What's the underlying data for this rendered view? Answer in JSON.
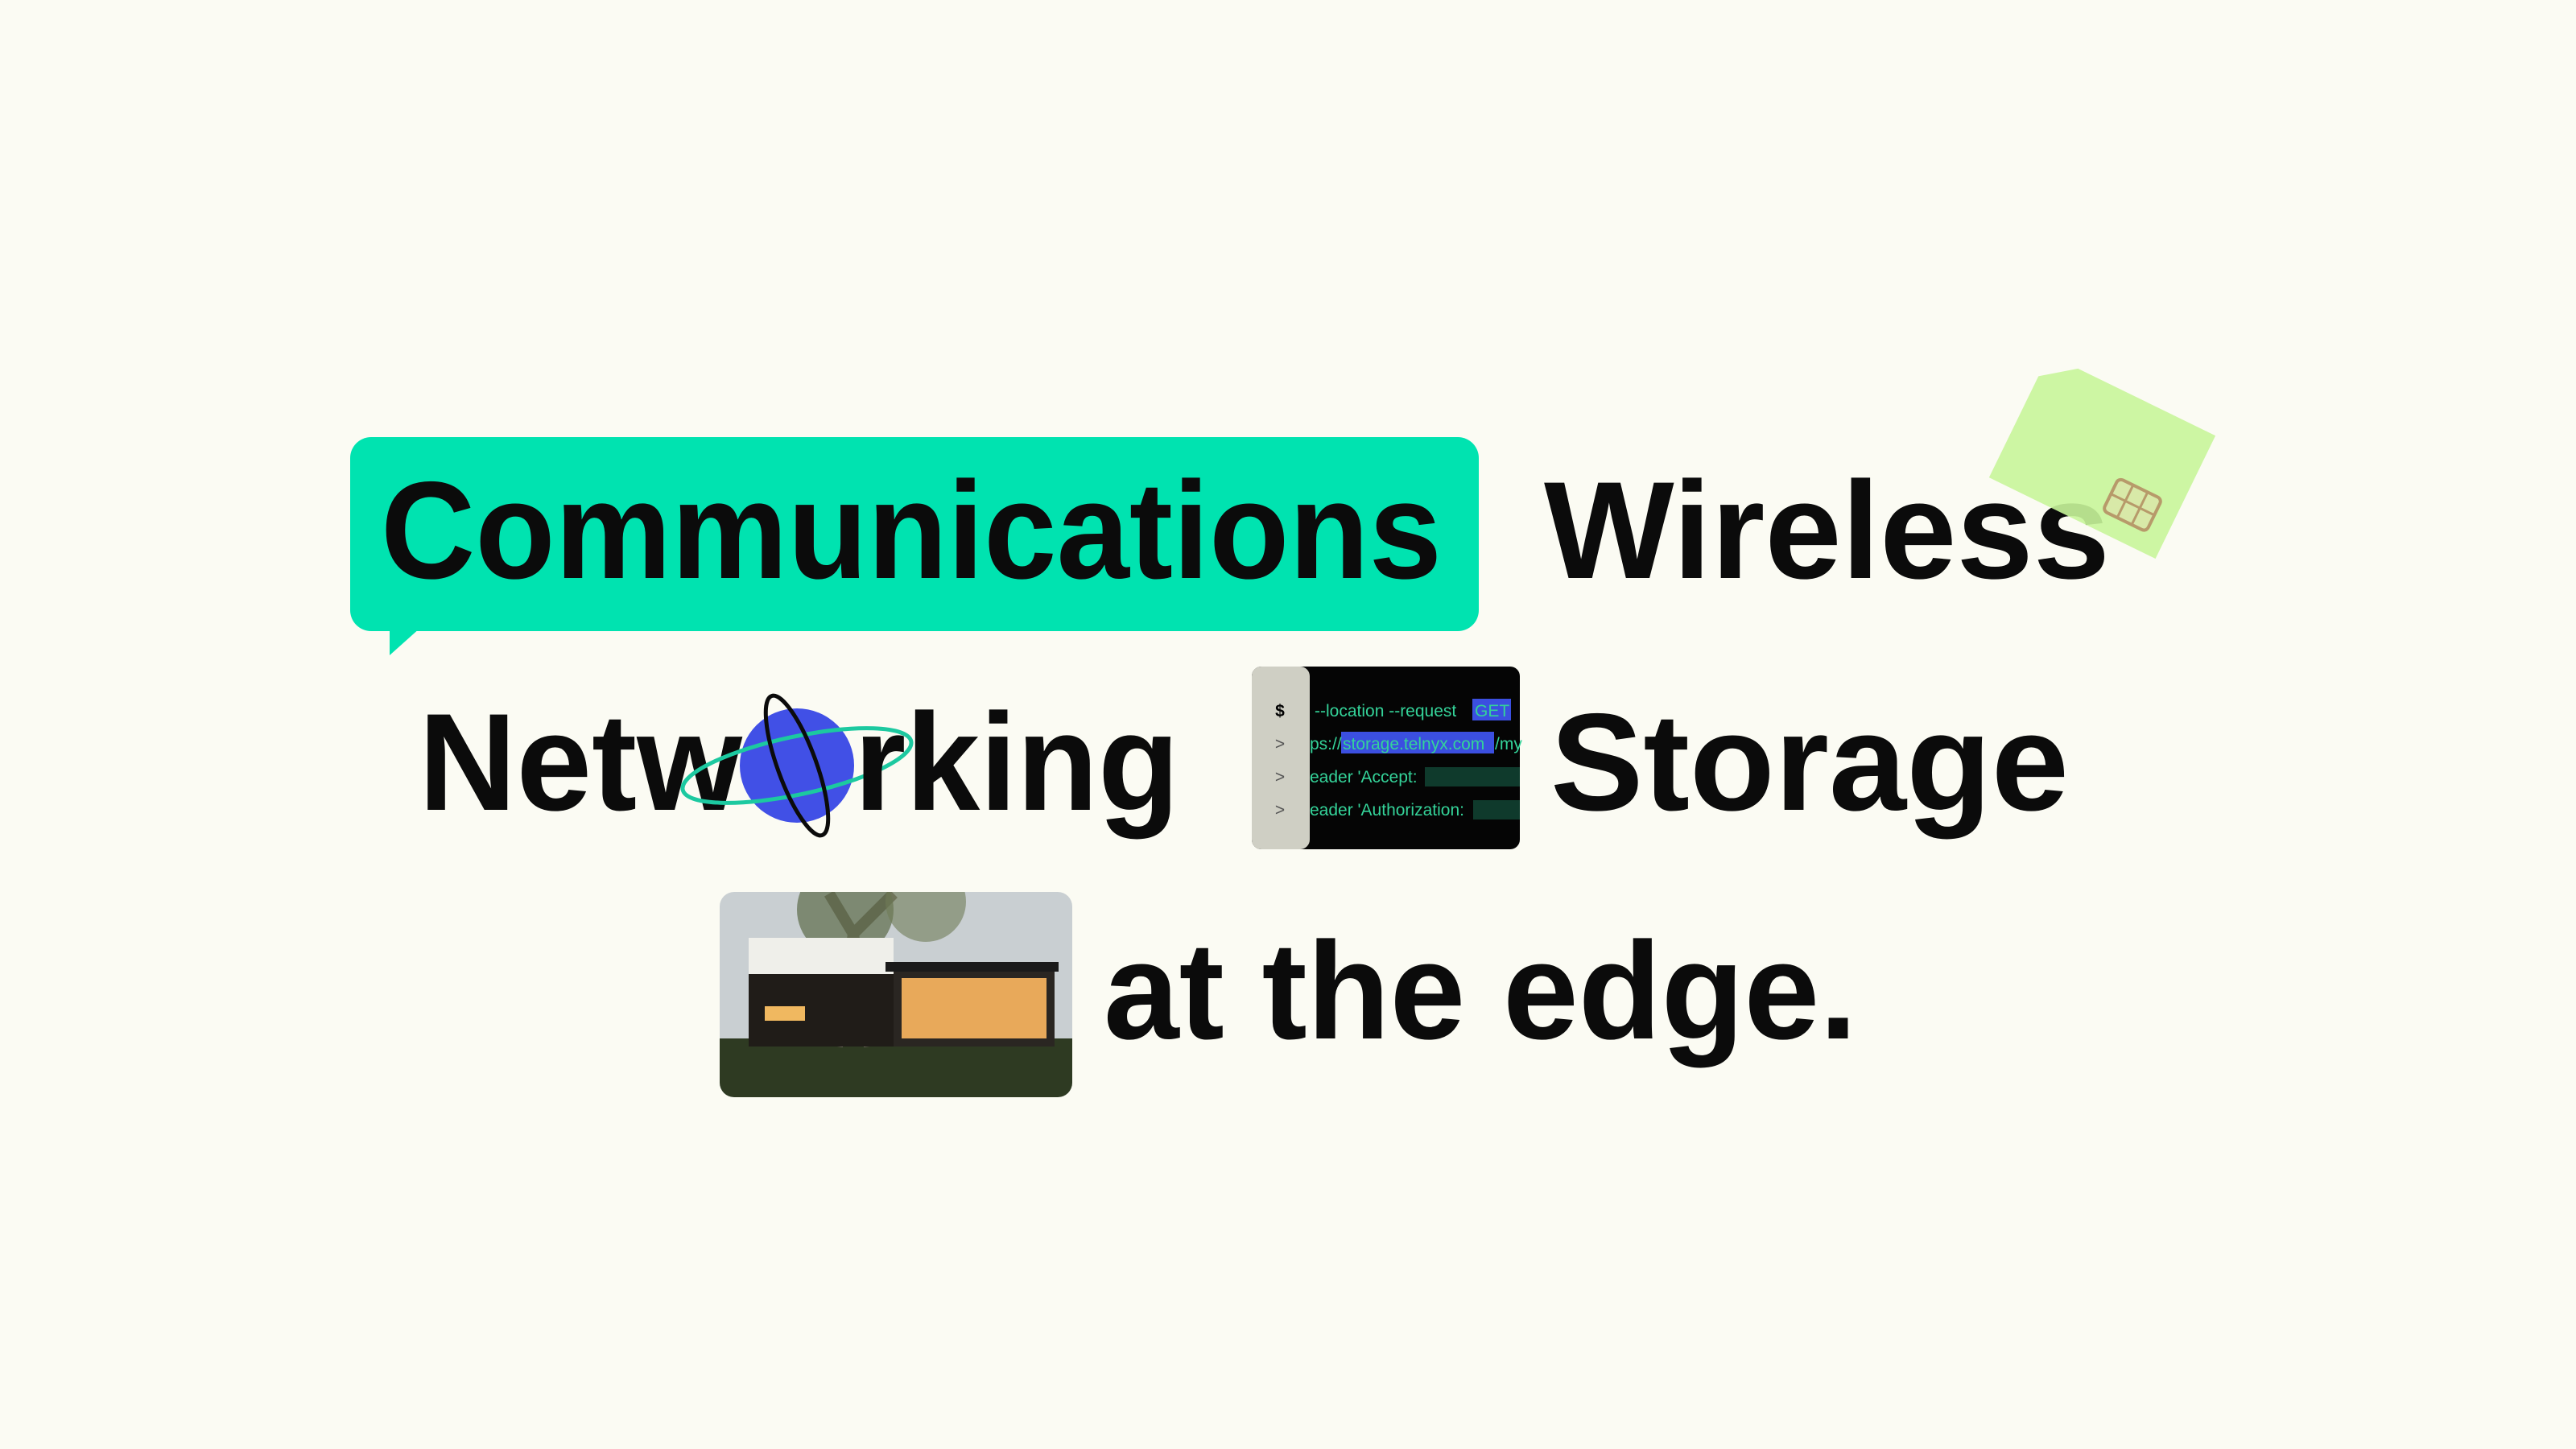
{
  "headline": {
    "row1": [
      "Communications",
      "Wireless"
    ],
    "row2": {
      "net_start": "Netw",
      "net_end": "rking",
      "storage": "Storage"
    },
    "row3": "at the edge."
  },
  "terminal": {
    "prompt": "$",
    "continuation": ">",
    "lines": [
      [
        "--location --request",
        "GET"
      ],
      [
        "ps://",
        "storage.telnyx.com",
        "/my"
      ],
      [
        "eader 'Accept:"
      ],
      [
        "eader 'Authorization:"
      ]
    ]
  }
}
